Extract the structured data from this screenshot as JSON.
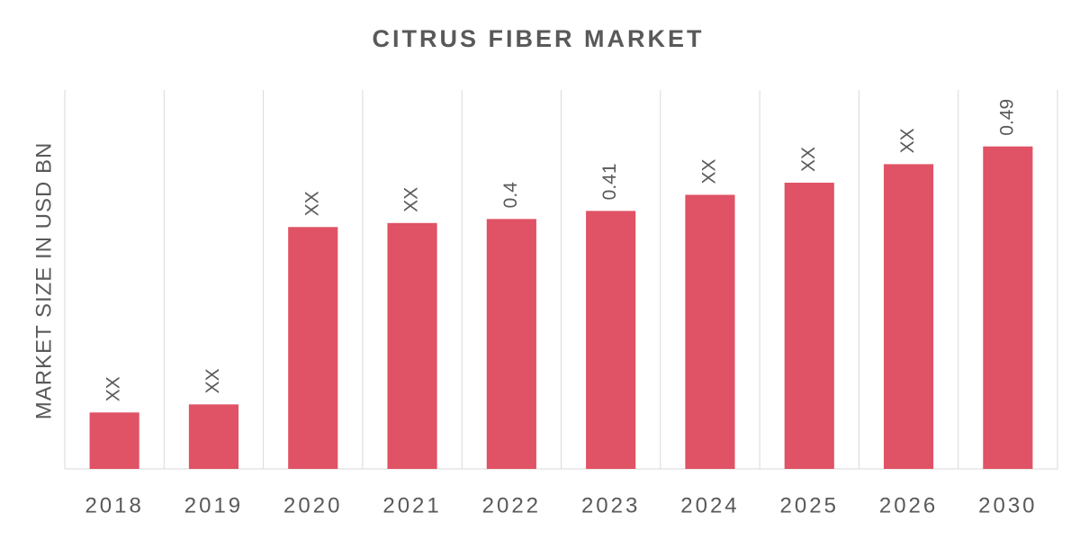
{
  "chart_data": {
    "type": "bar",
    "title": "CITRUS FIBER MARKET",
    "y_label": "MARKET SIZE IN USD BN",
    "categories": [
      "2018",
      "2019",
      "2020",
      "2021",
      "2022",
      "2023",
      "2024",
      "2025",
      "2026",
      "2030"
    ],
    "values": [
      0.16,
      0.17,
      0.39,
      0.395,
      0.4,
      0.41,
      0.43,
      0.445,
      0.468,
      0.49
    ],
    "value_labels": [
      "XX",
      "XX",
      "XX",
      "XX",
      "0.4",
      "0.41",
      "XX",
      "XX",
      "XX",
      "0.49"
    ],
    "color": "#e05265",
    "ylim": [
      0.09,
      0.56
    ]
  }
}
